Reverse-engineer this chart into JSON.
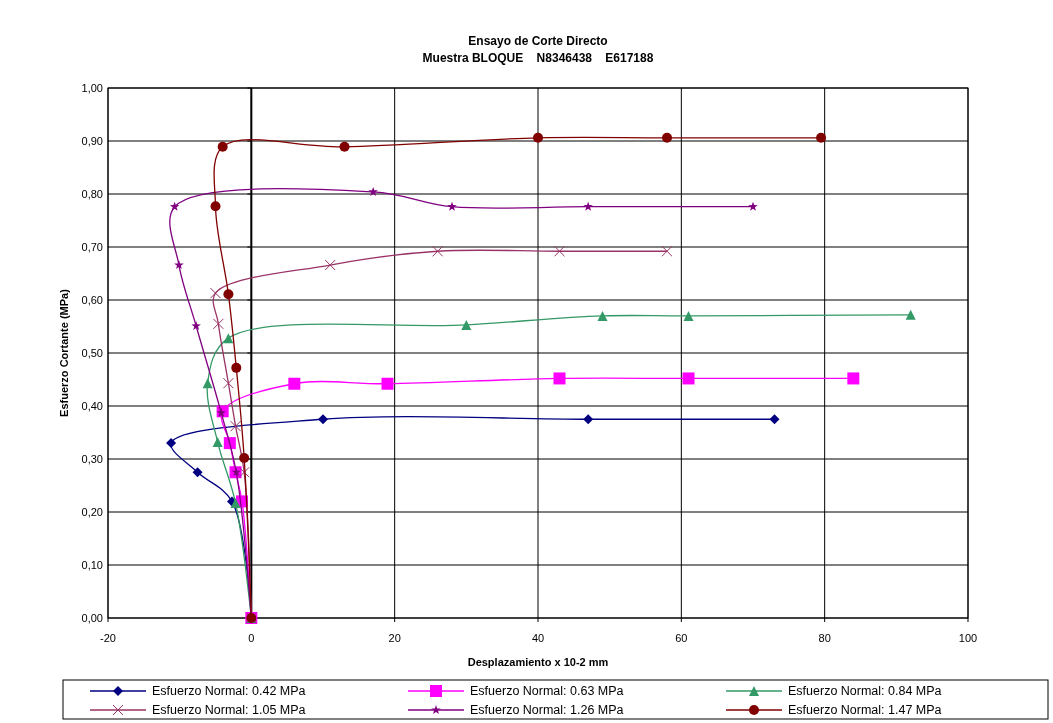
{
  "chart_data": {
    "type": "line",
    "title": "Ensayo de Corte Directo",
    "subtitle": "Muestra BLOQUE    N8346438    E617188",
    "xlabel": "Desplazamiento x 10-2 mm",
    "ylabel": "Esfuerzo Cortante (MPa)",
    "xlim": [
      -20,
      100
    ],
    "xticks": [
      -20,
      0,
      20,
      40,
      60,
      80,
      100
    ],
    "ylim": [
      0,
      1
    ],
    "yticks": [
      {
        "value": 0,
        "label": "0,00"
      },
      {
        "value": 0.1,
        "label": "0,10"
      },
      {
        "value": 0.2,
        "label": "0,20"
      },
      {
        "value": 0.3,
        "label": "0,30"
      },
      {
        "value": 0.4,
        "label": "0,40"
      },
      {
        "value": 0.5,
        "label": "0,50"
      },
      {
        "value": 0.6,
        "label": "0,60"
      },
      {
        "value": 0.7,
        "label": "0,70"
      },
      {
        "value": 0.8,
        "label": "0,80"
      },
      {
        "value": 0.9,
        "label": "0,90"
      },
      {
        "value": 1,
        "label": "1,00"
      }
    ],
    "grid": true,
    "legend": "bottom",
    "line_style": "solid",
    "series": [
      {
        "name": "Esfuerzo Normal: 0.42 MPa",
        "color": "#000080",
        "marker": "diamond",
        "x": [
          0,
          -2.7,
          -7.5,
          -11.2,
          10,
          47,
          73
        ],
        "values": [
          0,
          0.22,
          0.275,
          0.33,
          0.375,
          0.375,
          0.375
        ]
      },
      {
        "name": "Esfuerzo Normal: 0.63 MPa",
        "color": "#ff00ff",
        "marker": "square",
        "x": [
          0,
          -1.3,
          -2.2,
          -3,
          -4,
          6,
          19,
          43,
          61,
          84
        ],
        "values": [
          0,
          0.22,
          0.275,
          0.33,
          0.39,
          0.442,
          0.442,
          0.452,
          0.452,
          0.452
        ]
      },
      {
        "name": "Esfuerzo Normal: 0.84 MPa",
        "color": "#339966",
        "marker": "triangle",
        "x": [
          0,
          -2.2,
          -4.7,
          -6.1,
          -3.2,
          30,
          49,
          61,
          92
        ],
        "values": [
          0,
          0.217,
          0.332,
          0.443,
          0.528,
          0.553,
          0.57,
          0.57,
          0.572
        ]
      },
      {
        "name": "Esfuerzo Normal: 1.05 MPa",
        "color": "#993366",
        "marker": "cross",
        "x": [
          0,
          -1,
          -2.2,
          -3.2,
          -4.6,
          -5,
          11,
          26,
          43,
          58
        ],
        "values": [
          0,
          0.275,
          0.362,
          0.443,
          0.555,
          0.613,
          0.666,
          0.692,
          0.692,
          0.692
        ]
      },
      {
        "name": "Esfuerzo Normal: 1.26 MPa",
        "color": "#800080",
        "marker": "star",
        "x": [
          0,
          -2.1,
          -4.2,
          -7.7,
          -10.1,
          -10.7,
          17,
          28,
          47,
          70
        ],
        "values": [
          0,
          0.275,
          0.387,
          0.551,
          0.666,
          0.776,
          0.804,
          0.776,
          0.776,
          0.776
        ]
      },
      {
        "name": "Esfuerzo Normal: 1.47 MPa",
        "color": "#800000",
        "marker": "circle",
        "x": [
          0,
          -1,
          -2.1,
          -3.2,
          -5,
          -4,
          13,
          40,
          58,
          79.5
        ],
        "values": [
          0,
          0.302,
          0.472,
          0.611,
          0.777,
          0.889,
          0.889,
          0.906,
          0.906,
          0.906
        ]
      }
    ]
  }
}
